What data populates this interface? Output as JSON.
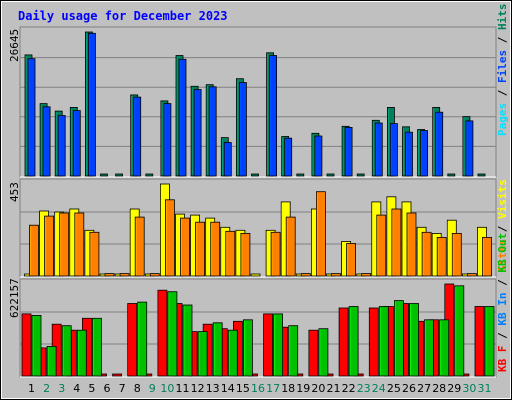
{
  "chart_data": [
    {
      "type": "bar",
      "title": "Daily usage for December 2023",
      "categories": [
        "1",
        "2",
        "3",
        "4",
        "5",
        "6",
        "7",
        "8",
        "9",
        "10",
        "11",
        "12",
        "13",
        "14",
        "15",
        "16",
        "17",
        "18",
        "19",
        "20",
        "21",
        "22",
        "23",
        "24",
        "25",
        "26",
        "27",
        "28",
        "29",
        "30",
        "31"
      ],
      "weekend_days": [
        "2",
        "3",
        "9",
        "10",
        "16",
        "17",
        "23",
        "24",
        "30",
        "31"
      ],
      "panel": "hits-files-pages",
      "axis_label": "26645",
      "ylim": [
        0,
        26645
      ],
      "legend": [
        "Pages",
        "Files",
        "Hits"
      ],
      "series": [
        {
          "name": "Hits",
          "values": [
            22400,
            13400,
            12000,
            12700,
            26645,
            0,
            0,
            15000,
            0,
            13900,
            22300,
            16600,
            16900,
            7100,
            18000,
            0,
            22800,
            7300,
            0,
            7900,
            0,
            9200,
            0,
            10300,
            12700,
            9100,
            8600,
            12700,
            0,
            11000,
            0
          ]
        },
        {
          "name": "Files",
          "values": [
            21700,
            12800,
            11200,
            12100,
            26400,
            0,
            0,
            14600,
            0,
            13400,
            21600,
            16000,
            16500,
            6200,
            17300,
            0,
            22300,
            7000,
            0,
            7400,
            0,
            9000,
            0,
            9800,
            9700,
            8100,
            8400,
            11800,
            0,
            10200,
            0
          ]
        },
        {
          "name": "Pages",
          "values": [
            0,
            0,
            0,
            0,
            0,
            0,
            0,
            0,
            0,
            0,
            0,
            0,
            0,
            0,
            0,
            0,
            0,
            0,
            0,
            0,
            0,
            0,
            0,
            0,
            0,
            0,
            0,
            0,
            0,
            0,
            0
          ]
        }
      ]
    },
    {
      "type": "bar",
      "panel": "visits-sites",
      "axis_label": "453",
      "ylim": [
        0,
        453
      ],
      "legend": [
        "Visits",
        "Sites"
      ],
      "series": [
        {
          "name": "Visits",
          "values": [
            0,
            320,
            315,
            330,
            225,
            0,
            0,
            330,
            0,
            453,
            305,
            300,
            285,
            240,
            225,
            0,
            225,
            365,
            0,
            330,
            0,
            170,
            0,
            365,
            390,
            365,
            240,
            210,
            275,
            0,
            240
          ]
        },
        {
          "name": "Sites",
          "values": [
            250,
            295,
            310,
            310,
            215,
            12,
            12,
            290,
            12,
            375,
            285,
            265,
            265,
            220,
            210,
            0,
            215,
            290,
            12,
            415,
            12,
            160,
            12,
            300,
            330,
            310,
            215,
            190,
            210,
            12,
            190
          ]
        }
      ]
    },
    {
      "type": "bar",
      "panel": "kb-in-out",
      "axis_label": "622157",
      "ylim": [
        0,
        622157
      ],
      "legend": [
        "KB F",
        "KB In",
        "KB Out"
      ],
      "series": [
        {
          "name": "KB F",
          "values": [
            420000,
            190000,
            350000,
            310000,
            390000,
            0,
            0,
            490000,
            0,
            580000,
            490000,
            300000,
            350000,
            320000,
            370000,
            0,
            420000,
            330000,
            0,
            310000,
            0,
            460000,
            0,
            460000,
            470000,
            490000,
            370000,
            380000,
            622157,
            0,
            470000
          ]
        },
        {
          "name": "KB In",
          "values": [
            0,
            0,
            0,
            0,
            0,
            0,
            0,
            0,
            0,
            0,
            0,
            0,
            0,
            0,
            0,
            0,
            0,
            0,
            0,
            0,
            0,
            0,
            0,
            0,
            0,
            0,
            0,
            0,
            0,
            0,
            0
          ]
        },
        {
          "name": "KB Out",
          "values": [
            410000,
            200000,
            340000,
            310000,
            390000,
            0,
            0,
            500000,
            0,
            570000,
            480000,
            300000,
            360000,
            310000,
            380000,
            0,
            420000,
            340000,
            0,
            320000,
            0,
            470000,
            0,
            470000,
            510000,
            490000,
            380000,
            380000,
            610000,
            0,
            470000
          ]
        }
      ]
    }
  ],
  "colors": {
    "hits": "#00805c",
    "files": "#0040ff",
    "pages": "#00e0ff",
    "visits": "#ffff00",
    "sites": "#ff8000",
    "kb": "#ff0000",
    "kb_in": "#0080ff",
    "kb_out": "#00c000",
    "title": "#0000ff",
    "weekday": "#000000",
    "weekend": "#00805c",
    "grid": "#808080",
    "panel_bg": "#c0c0c0",
    "frame": "#000000"
  }
}
